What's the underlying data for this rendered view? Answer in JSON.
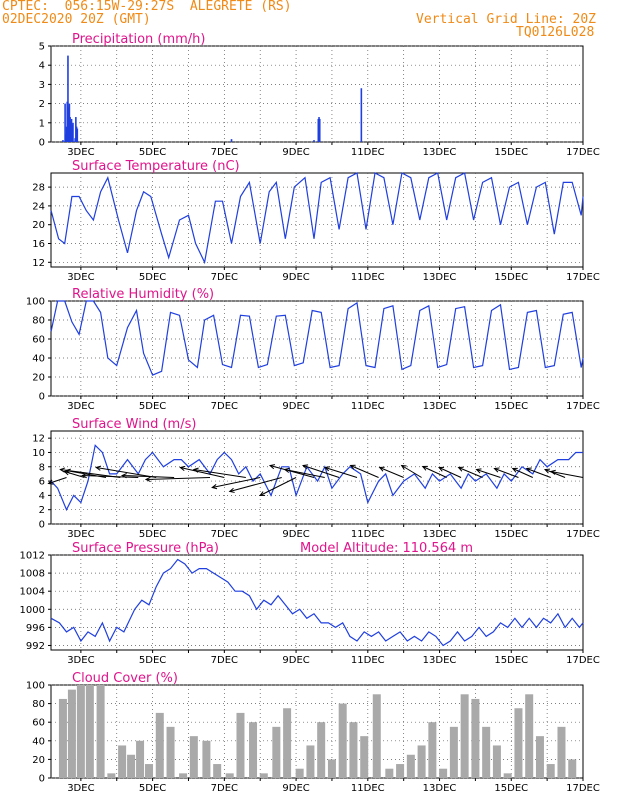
{
  "header": {
    "line1": "CPTEC:  056:15W-29:27S  ALEGRETE (RS)",
    "line2": "02DEC2020 20Z (GMT)",
    "right1": "Vertical Grid Line: 20Z",
    "right2": "TQ0126L028"
  },
  "colors": {
    "header": "#f08a16",
    "title": "#e0148c",
    "line": "#1f3fe0",
    "cloud": "#a9a9a9"
  },
  "chart_data": [
    {
      "type": "bar",
      "title": "Precipitation (mm/h)",
      "x_tick_labels": [
        "3DEC",
        "5DEC",
        "7DEC",
        "9DEC",
        "11DEC",
        "13DEC",
        "15DEC",
        "17DEC"
      ],
      "x_tick_days": [
        3,
        5,
        7,
        9,
        11,
        13,
        15,
        17
      ],
      "xlim": [
        2.167,
        17
      ],
      "ylim": [
        0,
        5
      ],
      "y_ticks": [
        0,
        1,
        2,
        3,
        4,
        5
      ],
      "x": [
        2.5,
        2.56,
        2.58,
        2.6,
        2.62,
        2.64,
        2.66,
        2.68,
        2.7,
        2.72,
        2.74,
        2.76,
        2.78,
        2.84,
        2.86,
        2.88,
        2.9,
        7.2,
        9.5,
        9.62,
        9.64,
        9.66,
        10.82
      ],
      "values": [
        0.1,
        2.0,
        0.4,
        0.8,
        2.1,
        4.5,
        1.8,
        2.0,
        1.3,
        1.1,
        1.2,
        0.9,
        1.0,
        0.2,
        1.3,
        0.8,
        0.7,
        0.15,
        0.1,
        1.2,
        1.3,
        1.2,
        2.8
      ]
    },
    {
      "type": "line",
      "title": "Surface Temperature (nC)",
      "x_tick_labels": [
        "3DEC",
        "5DEC",
        "7DEC",
        "9DEC",
        "11DEC",
        "13DEC",
        "15DEC",
        "17DEC"
      ],
      "xlim": [
        2.167,
        17
      ],
      "ylim": [
        11,
        31
      ],
      "y_ticks": [
        12,
        16,
        20,
        24,
        28
      ],
      "x": [
        2.17,
        2.38,
        2.55,
        2.75,
        2.95,
        3.15,
        3.35,
        3.55,
        3.75,
        4.05,
        4.3,
        4.55,
        4.75,
        4.95,
        5.25,
        5.45,
        5.75,
        6.0,
        6.2,
        6.45,
        6.75,
        6.95,
        7.2,
        7.45,
        7.7,
        8.0,
        8.25,
        8.45,
        8.7,
        8.95,
        9.25,
        9.5,
        9.7,
        9.95,
        10.2,
        10.45,
        10.7,
        10.95,
        11.2,
        11.45,
        11.7,
        11.95,
        12.2,
        12.45,
        12.7,
        12.95,
        13.2,
        13.45,
        13.7,
        13.95,
        14.2,
        14.45,
        14.7,
        14.95,
        15.2,
        15.45,
        15.7,
        15.95,
        16.2,
        16.45,
        16.7,
        16.95,
        17.0
      ],
      "values": [
        23,
        17,
        16,
        26,
        26,
        23,
        21,
        27,
        30,
        21,
        14,
        23,
        27,
        26,
        18,
        13,
        21,
        22,
        16,
        12,
        25,
        25,
        16,
        26,
        29,
        16,
        27,
        29,
        17,
        28,
        30,
        17,
        29,
        30,
        19,
        30,
        31,
        19,
        31,
        30,
        20,
        31,
        30,
        21,
        30,
        31,
        21,
        30,
        31,
        21,
        29,
        30,
        20,
        28,
        29,
        20,
        28,
        29,
        18,
        29,
        29,
        22,
        26
      ]
    },
    {
      "type": "line",
      "title": "Relative Humidity (%)",
      "x_tick_labels": [
        "3DEC",
        "5DEC",
        "7DEC",
        "9DEC",
        "11DEC",
        "13DEC",
        "15DEC",
        "17DEC"
      ],
      "xlim": [
        2.167,
        17
      ],
      "ylim": [
        0,
        100
      ],
      "y_ticks": [
        0,
        20,
        40,
        60,
        80,
        100
      ],
      "x": [
        2.17,
        2.35,
        2.55,
        2.75,
        2.95,
        3.15,
        3.35,
        3.55,
        3.75,
        4.0,
        4.3,
        4.55,
        4.75,
        5.0,
        5.25,
        5.5,
        5.75,
        6.0,
        6.25,
        6.45,
        6.7,
        6.95,
        7.2,
        7.45,
        7.7,
        7.95,
        8.2,
        8.45,
        8.7,
        8.95,
        9.2,
        9.45,
        9.7,
        9.95,
        10.2,
        10.45,
        10.7,
        10.95,
        11.2,
        11.45,
        11.7,
        11.95,
        12.2,
        12.45,
        12.7,
        12.95,
        13.2,
        13.45,
        13.7,
        13.95,
        14.2,
        14.45,
        14.7,
        14.95,
        15.2,
        15.45,
        15.7,
        15.95,
        16.2,
        16.45,
        16.7,
        16.95,
        17.0
      ],
      "values": [
        68,
        100,
        100,
        78,
        65,
        100,
        100,
        88,
        40,
        32,
        72,
        90,
        45,
        22,
        26,
        88,
        85,
        38,
        30,
        80,
        85,
        33,
        30,
        85,
        84,
        30,
        33,
        84,
        85,
        32,
        35,
        90,
        88,
        30,
        32,
        92,
        98,
        32,
        30,
        92,
        95,
        28,
        32,
        90,
        95,
        30,
        33,
        92,
        94,
        30,
        32,
        90,
        96,
        28,
        30,
        88,
        90,
        30,
        32,
        86,
        88,
        30,
        40
      ]
    },
    {
      "type": "line",
      "title": "Surface Wind (m/s)",
      "x_tick_labels": [
        "3DEC",
        "5DEC",
        "7DEC",
        "9DEC",
        "11DEC",
        "13DEC",
        "15DEC",
        "17DEC"
      ],
      "xlim": [
        2.167,
        17
      ],
      "ylim": [
        0,
        13
      ],
      "y_ticks": [
        0,
        2,
        4,
        6,
        8,
        10,
        12
      ],
      "x": [
        2.17,
        2.35,
        2.6,
        2.8,
        3.0,
        3.2,
        3.4,
        3.6,
        3.8,
        4.0,
        4.3,
        4.6,
        4.8,
        5.0,
        5.3,
        5.6,
        5.8,
        6.0,
        6.3,
        6.6,
        6.8,
        7.0,
        7.2,
        7.4,
        7.6,
        7.8,
        8.0,
        8.3,
        8.6,
        8.8,
        9.0,
        9.3,
        9.6,
        9.8,
        10.0,
        10.3,
        10.5,
        10.8,
        11.0,
        11.3,
        11.5,
        11.7,
        12.0,
        12.3,
        12.6,
        12.8,
        13.0,
        13.3,
        13.6,
        13.8,
        14.0,
        14.3,
        14.6,
        14.8,
        15.0,
        15.3,
        15.6,
        15.8,
        16.0,
        16.3,
        16.6,
        16.8,
        17.0
      ],
      "values": [
        6,
        5,
        2,
        4,
        3,
        6,
        11,
        10,
        7,
        7,
        9,
        7,
        9,
        10,
        8,
        9,
        9,
        8,
        9,
        7,
        9,
        10,
        9,
        7,
        8,
        6,
        7,
        4,
        8,
        8,
        4,
        8,
        6,
        8,
        5,
        7,
        8,
        7,
        3,
        6,
        7,
        4,
        6,
        7,
        5,
        7,
        6,
        7,
        5,
        7,
        6,
        7,
        5,
        7,
        6,
        8,
        7,
        9,
        8,
        9,
        9,
        10,
        10
      ],
      "vectors": [
        {
          "x": 3.7,
          "u": -1.0,
          "v": 0.35
        },
        {
          "x": 4.1,
          "u": -1.5,
          "v": 0.4
        },
        {
          "x": 4.6,
          "u": -1.4,
          "v": 0.1
        },
        {
          "x": 5.1,
          "u": -1.5,
          "v": 0.5
        },
        {
          "x": 5.6,
          "u": -1.3,
          "v": 0.1
        },
        {
          "x": 6.6,
          "u": -1.6,
          "v": -0.1
        },
        {
          "x": 7.0,
          "u": -1.1,
          "v": 0.5
        },
        {
          "x": 7.6,
          "u": -1.3,
          "v": 0.4
        },
        {
          "x": 8.0,
          "u": -1.2,
          "v": -0.5
        },
        {
          "x": 8.6,
          "u": -1.3,
          "v": -0.7
        },
        {
          "x": 9.0,
          "u": -0.9,
          "v": -0.9
        },
        {
          "x": 9.5,
          "u": -1.1,
          "v": 0.6
        },
        {
          "x": 9.8,
          "u": -1.0,
          "v": 0.4
        },
        {
          "x": 10.2,
          "u": -0.9,
          "v": 0.6
        },
        {
          "x": 10.7,
          "u": -0.8,
          "v": 0.5
        },
        {
          "x": 11.3,
          "u": -0.7,
          "v": 0.6
        },
        {
          "x": 12.0,
          "u": -0.6,
          "v": 0.5
        },
        {
          "x": 12.5,
          "u": -0.5,
          "v": 0.6
        },
        {
          "x": 13.2,
          "u": -0.6,
          "v": 0.55
        },
        {
          "x": 13.6,
          "u": -0.55,
          "v": 0.5
        },
        {
          "x": 14.2,
          "u": -0.6,
          "v": 0.5
        },
        {
          "x": 14.7,
          "u": -0.6,
          "v": 0.4
        },
        {
          "x": 15.2,
          "u": -0.6,
          "v": 0.45
        },
        {
          "x": 15.6,
          "u": -0.5,
          "v": 0.45
        },
        {
          "x": 16.1,
          "u": -0.6,
          "v": 0.45
        },
        {
          "x": 16.5,
          "u": -0.5,
          "v": 0.4
        },
        {
          "x": 17.0,
          "u": -0.8,
          "v": 0.3
        },
        {
          "x": 2.6,
          "u": -0.45,
          "v": -0.3
        },
        {
          "x": 3.1,
          "u": -0.5,
          "v": 0.3
        }
      ]
    },
    {
      "type": "line",
      "title": "Surface Pressure (hPa)",
      "annotation": "Model Altitude: 110.564 m",
      "x_tick_labels": [
        "3DEC",
        "5DEC",
        "7DEC",
        "9DEC",
        "11DEC",
        "13DEC",
        "15DEC",
        "17DEC"
      ],
      "xlim": [
        2.167,
        17
      ],
      "ylim": [
        991,
        1012
      ],
      "y_ticks": [
        992,
        996,
        1000,
        1004,
        1008,
        1012
      ],
      "x": [
        2.17,
        2.4,
        2.6,
        2.8,
        3.0,
        3.2,
        3.4,
        3.6,
        3.8,
        4.0,
        4.2,
        4.5,
        4.7,
        4.9,
        5.1,
        5.3,
        5.5,
        5.7,
        5.9,
        6.1,
        6.3,
        6.5,
        6.7,
        6.9,
        7.1,
        7.3,
        7.5,
        7.7,
        7.9,
        8.1,
        8.3,
        8.5,
        8.7,
        8.9,
        9.1,
        9.3,
        9.5,
        9.7,
        9.9,
        10.1,
        10.3,
        10.5,
        10.7,
        10.9,
        11.1,
        11.3,
        11.5,
        11.7,
        11.9,
        12.1,
        12.3,
        12.5,
        12.7,
        12.9,
        13.1,
        13.3,
        13.5,
        13.7,
        13.9,
        14.1,
        14.3,
        14.5,
        14.7,
        14.9,
        15.1,
        15.3,
        15.5,
        15.7,
        15.9,
        16.1,
        16.3,
        16.5,
        16.7,
        16.9,
        17.0
      ],
      "values": [
        998,
        997,
        995,
        996,
        993,
        995,
        994,
        997,
        993,
        996,
        995,
        1000,
        1002,
        1001,
        1005,
        1008,
        1009,
        1011,
        1010,
        1008,
        1009,
        1009,
        1008,
        1007,
        1006,
        1004,
        1004,
        1003,
        1000,
        1002,
        1001,
        1003,
        1001,
        999,
        1000,
        998,
        999,
        997,
        997,
        996,
        997,
        994,
        993,
        995,
        994,
        995,
        993,
        994,
        995,
        993,
        994,
        993,
        995,
        994,
        992,
        993,
        995,
        993,
        994,
        996,
        994,
        995,
        997,
        996,
        998,
        996,
        998,
        996,
        998,
        997,
        999,
        996,
        998,
        996,
        997
      ]
    },
    {
      "type": "bar",
      "title": "Cloud Cover (%)",
      "x_tick_labels": [
        "3DEC",
        "5DEC",
        "7DEC",
        "9DEC",
        "11DEC",
        "13DEC",
        "15DEC",
        "17DEC"
      ],
      "xlim": [
        2.167,
        17
      ],
      "ylim": [
        0,
        100
      ],
      "y_ticks": [
        0,
        20,
        40,
        60,
        80,
        100
      ],
      "x": [
        2.5,
        2.75,
        3.0,
        3.25,
        3.55,
        3.85,
        4.15,
        4.4,
        4.65,
        4.9,
        5.2,
        5.5,
        5.85,
        6.15,
        6.5,
        6.8,
        7.15,
        7.45,
        7.8,
        8.1,
        8.45,
        8.75,
        9.1,
        9.4,
        9.7,
        10.0,
        10.3,
        10.6,
        10.9,
        11.25,
        11.6,
        11.9,
        12.2,
        12.5,
        12.8,
        13.1,
        13.4,
        13.7,
        14.0,
        14.3,
        14.6,
        14.9,
        15.2,
        15.5,
        15.8,
        16.1,
        16.4,
        16.7
      ],
      "values": [
        85,
        95,
        100,
        100,
        100,
        5,
        35,
        25,
        40,
        15,
        70,
        55,
        5,
        45,
        40,
        15,
        5,
        70,
        60,
        5,
        55,
        75,
        10,
        35,
        60,
        20,
        80,
        60,
        45,
        90,
        10,
        15,
        25,
        35,
        60,
        10,
        55,
        90,
        85,
        55,
        35,
        5,
        75,
        90,
        45,
        15,
        55,
        20
      ]
    }
  ]
}
